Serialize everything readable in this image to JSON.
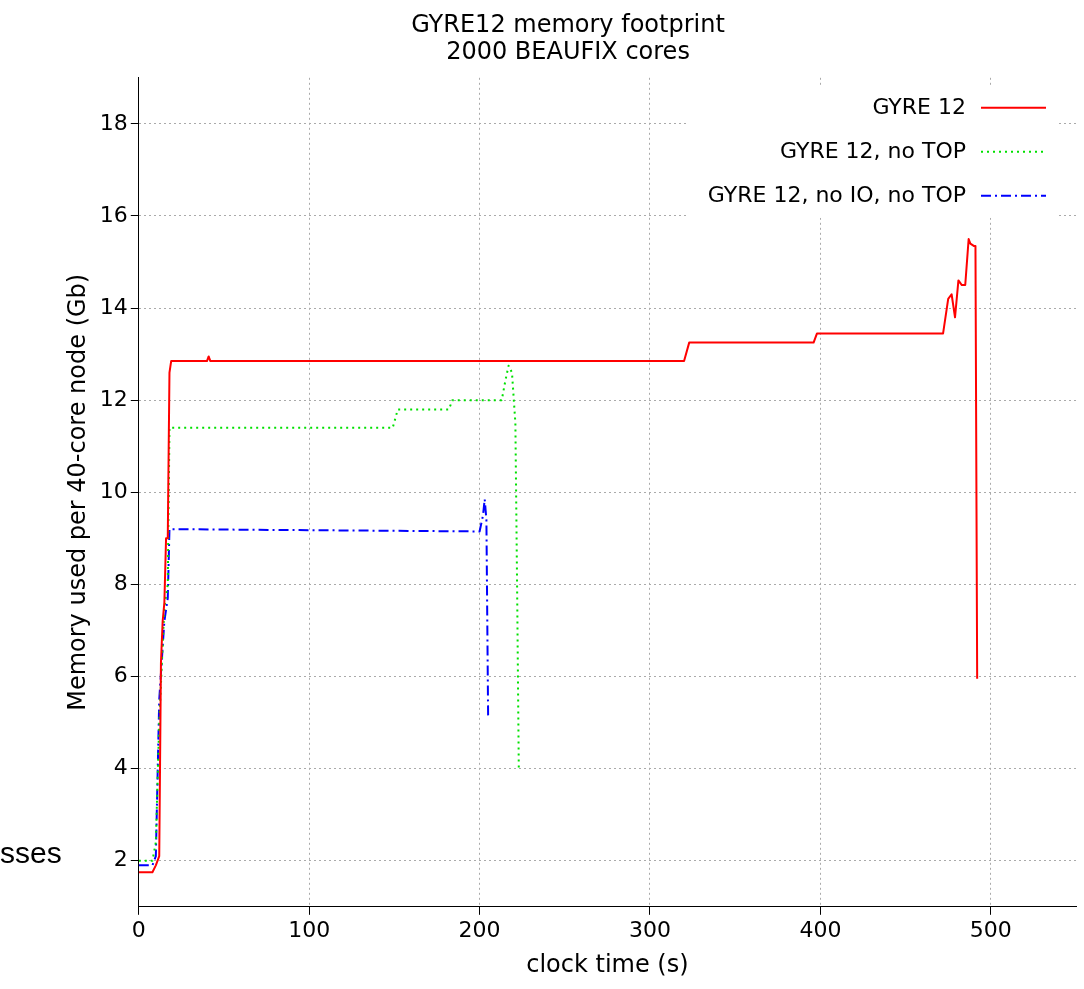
{
  "chart_data": {
    "type": "line",
    "title": [
      "GYRE12 memory footprint",
      "2000 BEAUFIX cores"
    ],
    "xlabel": "clock time (s)",
    "ylabel": "Memory used per 40-core node (Gb)",
    "xlim": [
      0,
      550
    ],
    "xticks": [
      0,
      100,
      200,
      300,
      400,
      500
    ],
    "ylim": [
      1,
      19
    ],
    "yticks": [
      2,
      4,
      6,
      8,
      10,
      12,
      14,
      16,
      18
    ],
    "grid": true,
    "legend": "top right",
    "marker": "none",
    "annotations": [
      "sses"
    ],
    "series": [
      {
        "name": "GYRE 12",
        "color": "#ff0000",
        "line_style": "solid",
        "x": [
          0,
          8,
          10,
          12,
          13,
          14,
          15,
          16,
          17,
          18,
          19,
          40,
          41,
          42,
          320,
          323,
          396,
          398,
          472,
          475,
          477,
          479,
          481,
          483,
          485,
          487,
          488,
          490,
          491,
          492
        ],
        "values": [
          1.75,
          1.75,
          1.9,
          2.1,
          6.3,
          7.2,
          7.6,
          9.0,
          9.0,
          12.6,
          12.85,
          12.85,
          12.95,
          12.85,
          12.85,
          13.25,
          13.25,
          13.45,
          13.45,
          14.2,
          14.3,
          13.8,
          14.6,
          14.5,
          14.5,
          15.5,
          15.4,
          15.35,
          15.35,
          5.95
        ]
      },
      {
        "name": "GYRE 12, no TOP",
        "color": "#00e000",
        "line_style": "dotted",
        "x": [
          0,
          8,
          10,
          12,
          15,
          17,
          18,
          19,
          149,
          152,
          182,
          184,
          213,
          215,
          217,
          219,
          221,
          222,
          223
        ],
        "values": [
          2.0,
          2.0,
          2.4,
          5.0,
          7.5,
          8.0,
          11.4,
          11.4,
          11.4,
          11.8,
          11.8,
          12.0,
          12.0,
          12.4,
          12.75,
          12.6,
          11.5,
          8.0,
          4.0
        ]
      },
      {
        "name": "GYRE 12, no IO, no TOP",
        "color": "#0000ff",
        "line_style": "dashed",
        "x": [
          0,
          8,
          10,
          12,
          15,
          17,
          18,
          200,
          202,
          203,
          204,
          205
        ],
        "values": [
          1.9,
          1.9,
          2.1,
          5.5,
          7.2,
          7.7,
          9.2,
          9.15,
          9.5,
          9.85,
          9.4,
          5.15
        ]
      }
    ]
  }
}
